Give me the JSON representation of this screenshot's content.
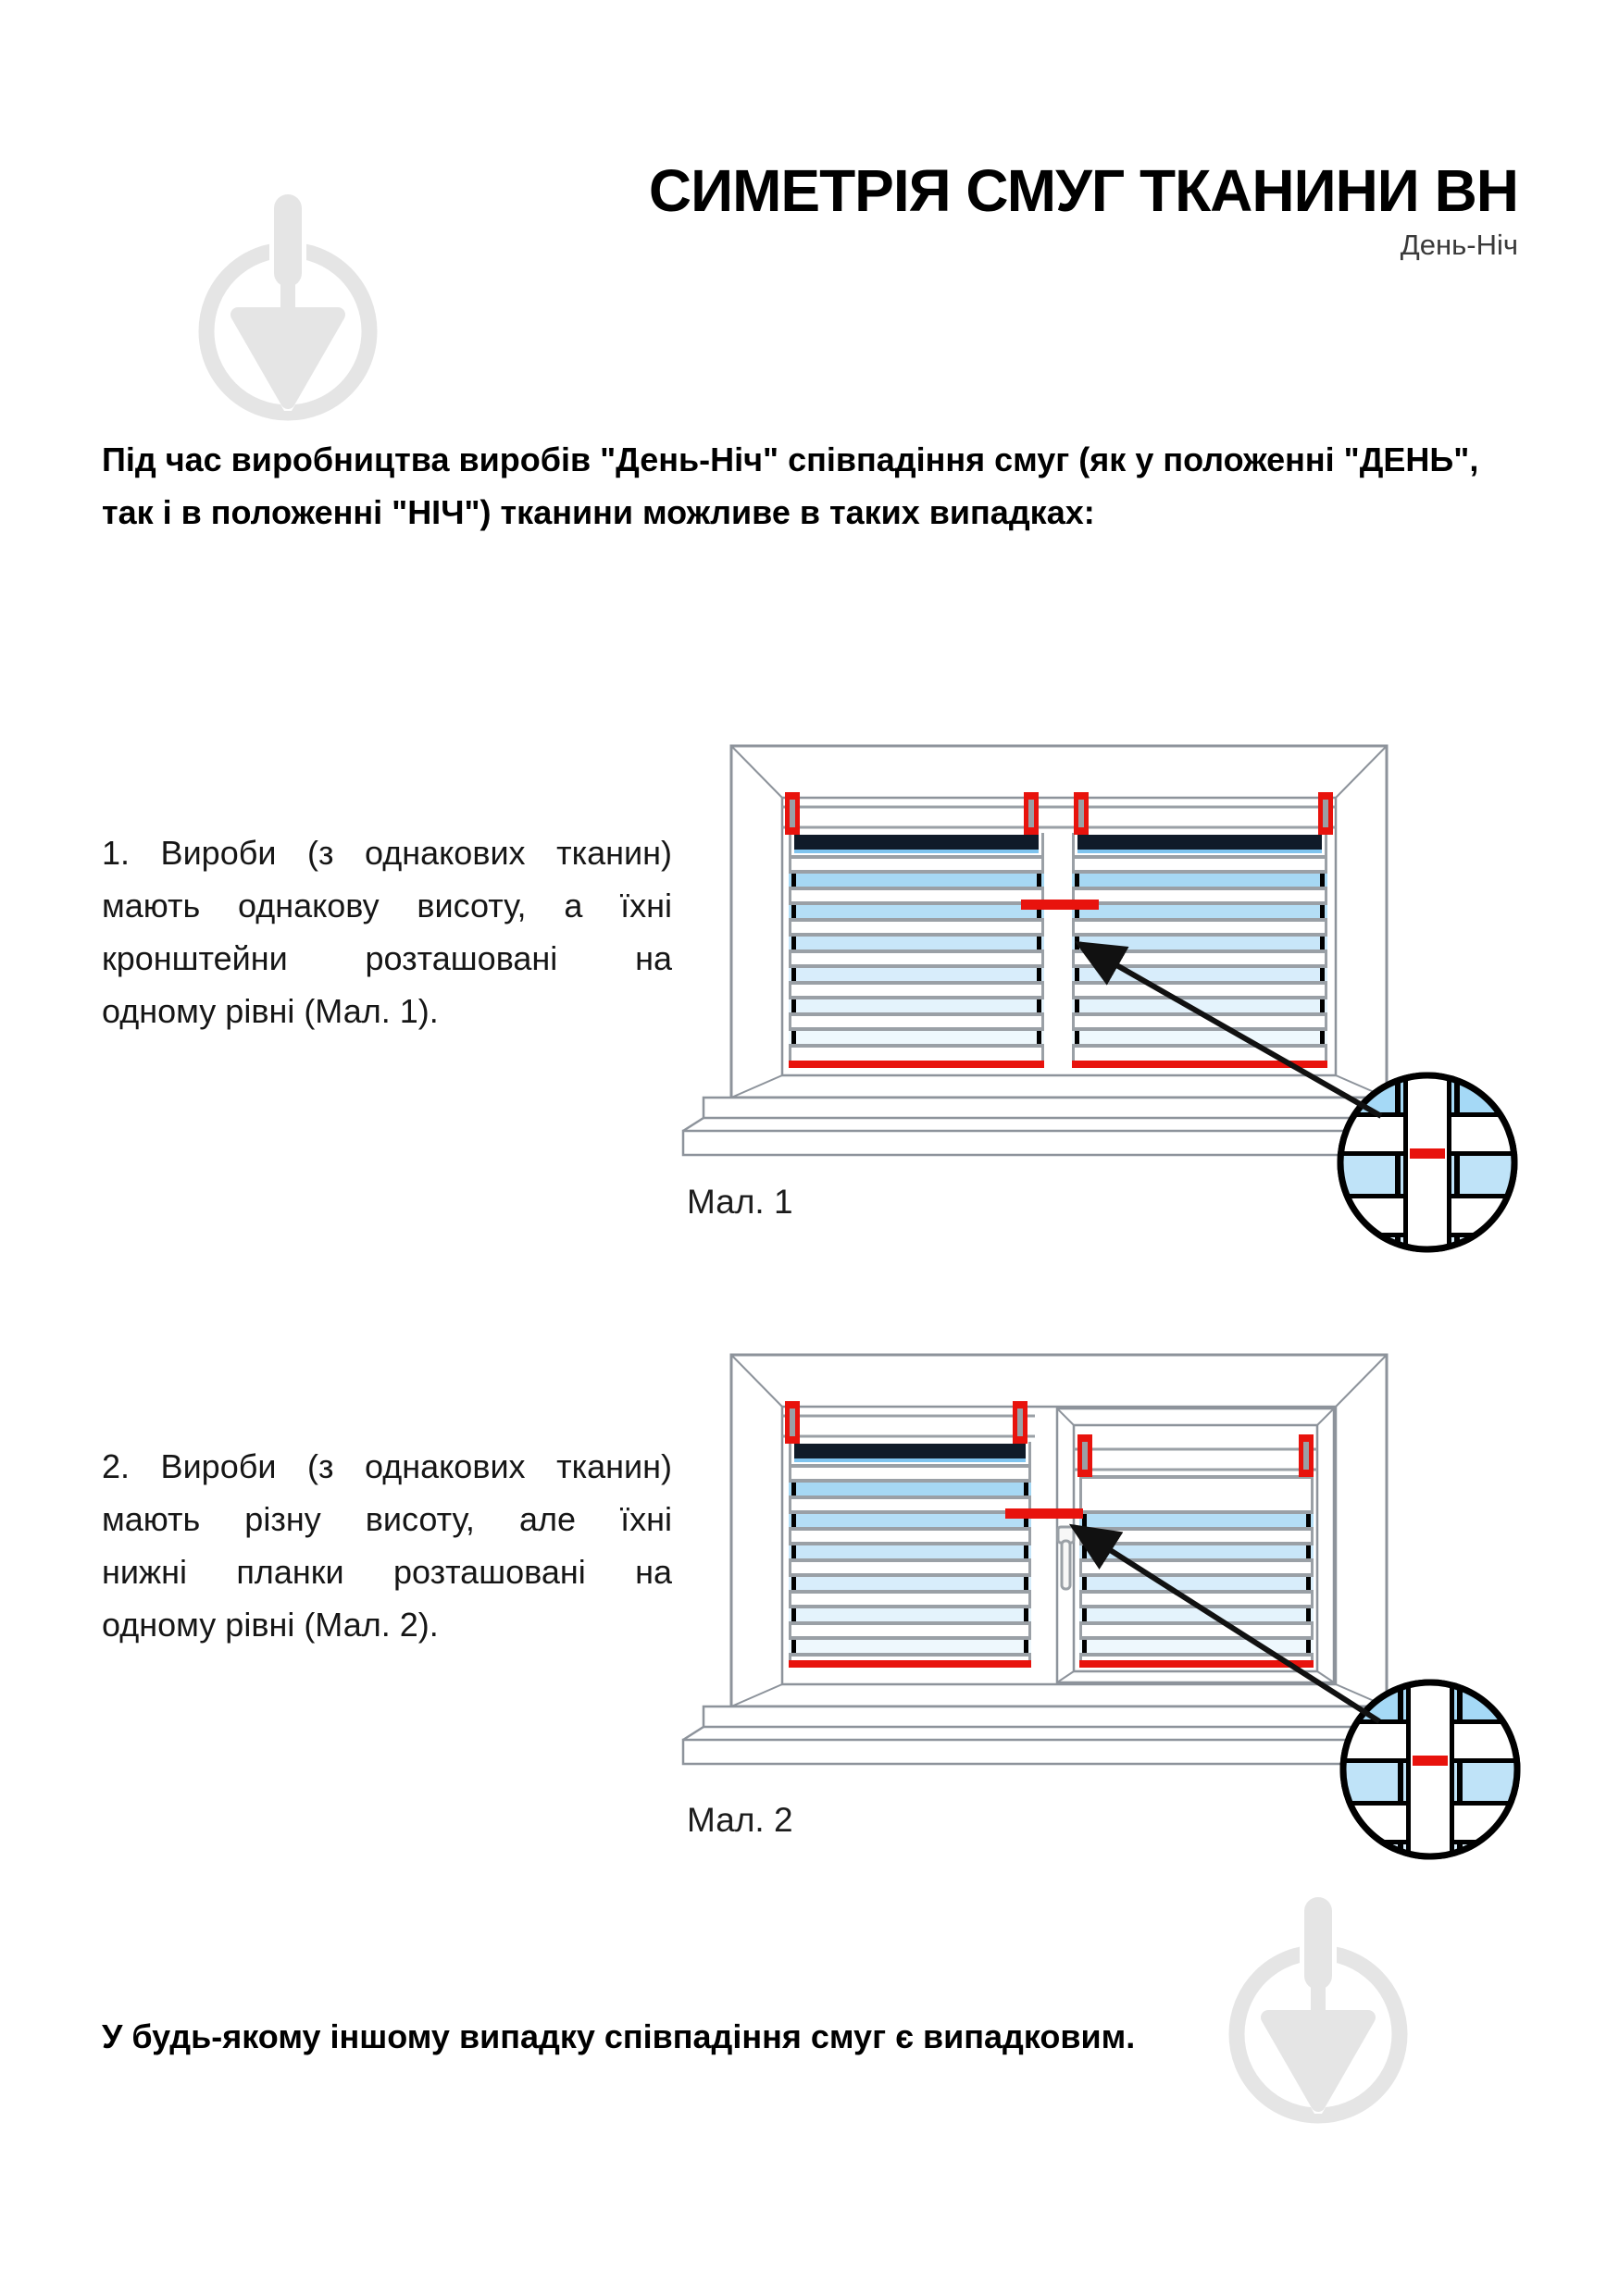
{
  "page": {
    "title": "СИМЕТРІЯ СМУГ ТКАНИНИ ВН",
    "subtitle": "День-Ніч",
    "intro_lines": [
      "Під час виробництва виробів \"День-Ніч\" співпадіння смуг (як у положенні \"ДЕНЬ\",",
      "так і в положенні \"НІЧ\") тканини можливе в таких випадках:"
    ],
    "items": [
      {
        "lines": [
          "1. Вироби (з однакових тканин)",
          "мають однакову висоту, а їхні",
          "кронштейни розташовані на",
          "одному рівні (Мал. 1)."
        ],
        "caption": "Мал. 1"
      },
      {
        "lines": [
          "2. Вироби (з однакових тканин)",
          "мають різну висоту, але їхні",
          "нижні планки розташовані на",
          "одному рівні (Мал. 2)."
        ],
        "caption": "Мал. 2"
      }
    ],
    "footer": "У будь-якому іншому випадку співпадіння смуг є випадковим.",
    "watermark_icon": "trowel-circle-logo",
    "colors": {
      "accent_red": "#e8130d",
      "frame_gray": "#8d939b",
      "separator_gray": "#9aa0a6",
      "navy_stripe": "#101b29",
      "navy_underline": "#7fc4ef",
      "stripe_blues": [
        "#a6d8f4",
        "#b4def6",
        "#c8e6f9",
        "#d8edfb",
        "#e4f3fc",
        "#eef8fd"
      ],
      "magnifier_blues": [
        "#a5d9f6",
        "#bfe3f8",
        "#d9eefb"
      ],
      "watermark_gray": "#e5e5e5",
      "arrow_black": "#111111"
    }
  }
}
